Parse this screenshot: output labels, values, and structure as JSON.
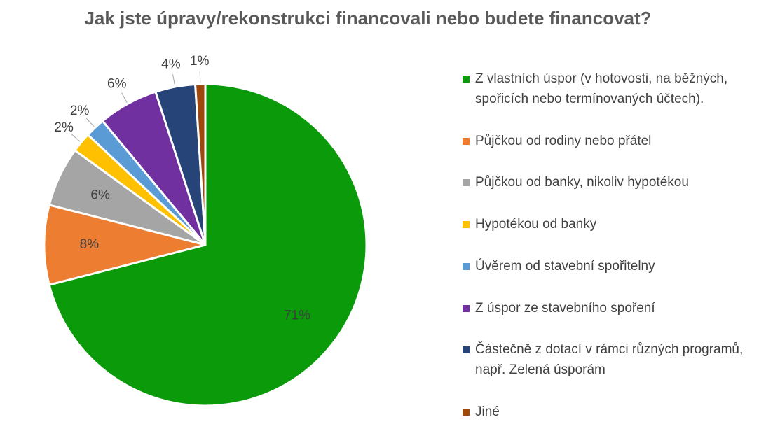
{
  "chart_data": {
    "type": "pie",
    "title": "Jak jste úpravy/rekonstrukci financovali nebo budete financovat?",
    "categories": [
      "Z vlastních úspor (v hotovosti, na běžných, spořicích nebo termínovaných účtech).",
      "Půjčkou od rodiny nebo přátel",
      "Půjčkou od banky, nikoliv hypotékou",
      "Hypotékou od banky",
      "Úvěrem od stavební spořitelny",
      "Z úspor ze stavebního spoření",
      "Částečně z dotací v rámci různých programů, např. Zelená úsporám",
      "Jiné"
    ],
    "values": [
      71,
      8,
      6,
      2,
      2,
      6,
      4,
      1
    ],
    "value_labels": [
      "71%",
      "8%",
      "6%",
      "2%",
      "2%",
      "6%",
      "4%",
      "1%"
    ],
    "colors": [
      "#0a9a0a",
      "#ed7d31",
      "#a5a5a5",
      "#ffc000",
      "#5b9bd5",
      "#7030a0",
      "#264478",
      "#9e480e"
    ],
    "legend": "right"
  }
}
